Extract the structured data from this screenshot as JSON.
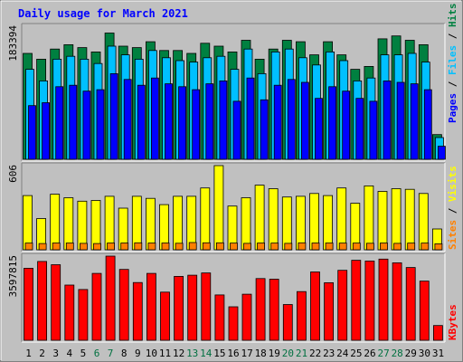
{
  "chart_data": {
    "type": "bar",
    "title": "Daily usage for March 2021",
    "categories": [
      "1",
      "2",
      "3",
      "4",
      "5",
      "6",
      "7",
      "8",
      "9",
      "10",
      "11",
      "12",
      "13",
      "14",
      "15",
      "16",
      "17",
      "18",
      "19",
      "20",
      "21",
      "22",
      "23",
      "24",
      "25",
      "26",
      "27",
      "28",
      "29",
      "30",
      "31"
    ],
    "weekend_days": [
      "6",
      "7",
      "13",
      "14",
      "20",
      "21",
      "27",
      "28"
    ],
    "panels": [
      {
        "id": "top",
        "scale_label": "183394",
        "ymax": 183394,
        "legend": [
          "Pages",
          "Files",
          "Hits"
        ],
        "series": [
          {
            "name": "Hits",
            "color": "#008040",
            "values": [
              146000,
              138000,
              152000,
              158000,
              154000,
              148000,
              174000,
              156000,
              154000,
              162000,
              150000,
              150000,
              146000,
              160000,
              156000,
              148000,
              164000,
              138000,
              152000,
              164000,
              162000,
              144000,
              162000,
              144000,
              124000,
              128000,
              166000,
              170000,
              164000,
              158000,
              34000
            ]
          },
          {
            "name": "Files",
            "color": "#00c0ff",
            "values": [
              124000,
              108000,
              138000,
              142000,
              138000,
              132000,
              156000,
              144000,
              138000,
              150000,
              140000,
              136000,
              134000,
              140000,
              142000,
              124000,
              152000,
              118000,
              148000,
              152000,
              140000,
              130000,
              148000,
              136000,
              108000,
              112000,
              144000,
              144000,
              146000,
              134000,
              30000
            ]
          },
          {
            "name": "Pages",
            "color": "#0000ff",
            "values": [
              74000,
              78000,
              100000,
              102000,
              94000,
              96000,
              118000,
              110000,
              102000,
              112000,
              104000,
              100000,
              96000,
              104000,
              108000,
              80000,
              112000,
              82000,
              102000,
              110000,
              106000,
              84000,
              100000,
              94000,
              84000,
              80000,
              108000,
              106000,
              104000,
              96000,
              18000
            ]
          }
        ]
      },
      {
        "id": "middle",
        "scale_label": "606",
        "ymax": 606,
        "legend": [
          "Sites",
          "Visits"
        ],
        "series": [
          {
            "name": "Visits",
            "color": "#ffff00",
            "values": [
              390,
              225,
              400,
              375,
              350,
              355,
              385,
              300,
              385,
              370,
              325,
              385,
              385,
              445,
              606,
              315,
              375,
              465,
              440,
              380,
              385,
              405,
              390,
              445,
              335,
              460,
              420,
              440,
              435,
              405,
              150
            ]
          },
          {
            "name": "Sites",
            "color": "#ff8000",
            "values": [
              48,
              45,
              49,
              49,
              46,
              45,
              49,
              49,
              50,
              49,
              49,
              47,
              52,
              50,
              50,
              48,
              46,
              49,
              48,
              46,
              50,
              49,
              49,
              48,
              48,
              47,
              49,
              46,
              48,
              48,
              43
            ]
          }
        ]
      },
      {
        "id": "bottom",
        "scale_label": "3597815",
        "ymax": 3597815,
        "legend": [
          "KBytes"
        ],
        "series": [
          {
            "name": "KBytes",
            "color": "#ff0000",
            "values": [
              3080000,
              3370000,
              3230000,
              2360000,
              2170000,
              2860000,
              3597815,
              3030000,
              2470000,
              2860000,
              2060000,
              2730000,
              2780000,
              2880000,
              1940000,
              1430000,
              1970000,
              2640000,
              2610000,
              1530000,
              2080000,
              2920000,
              2460000,
              2990000,
              3420000,
              3390000,
              3470000,
              3310000,
              3110000,
              2530000,
              630000
            ]
          }
        ]
      }
    ],
    "colors": {
      "title": "#0000ff",
      "background": "#c0c0c0",
      "plot_bg": "#c0c0c0",
      "weekday_label": "#000000",
      "weekend_label": "#007040",
      "legend_separator": "#000000"
    }
  }
}
